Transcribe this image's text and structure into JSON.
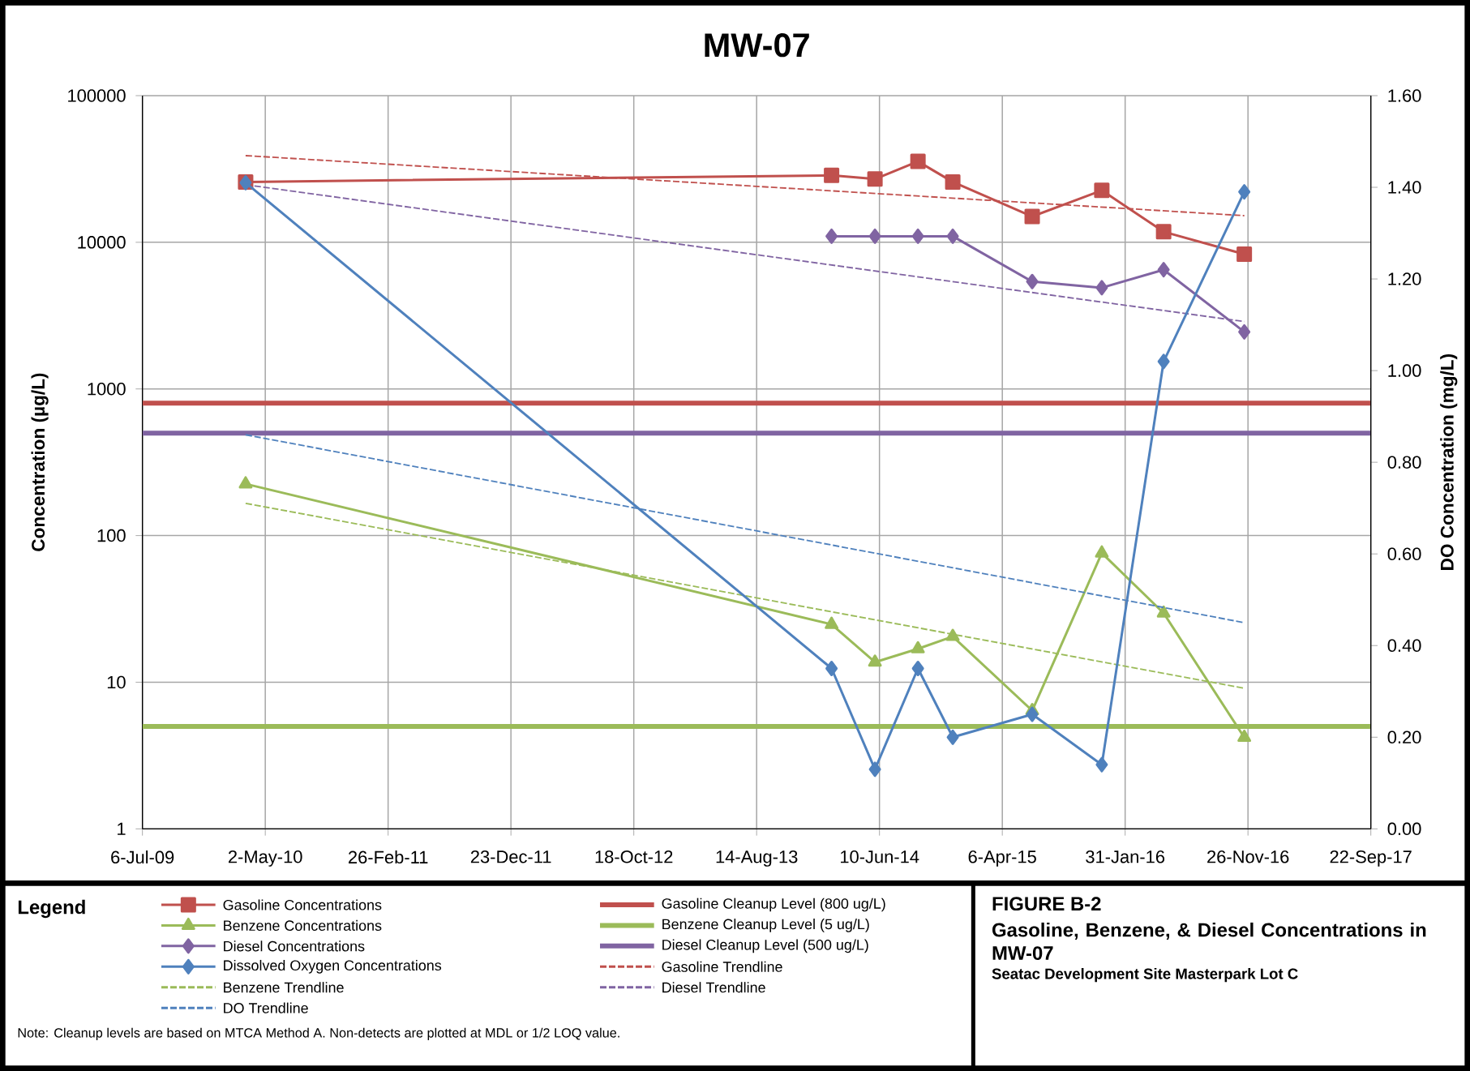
{
  "chart_data": {
    "type": "line",
    "title": "MW-07",
    "ylabel": "Concentration (µg/L)",
    "y2label": "DO Concentration (mg/L)",
    "legend_title": "Legend",
    "annotations": [
      "FIGURE B-2",
      "Gasoline, Benzene, & Diesel Concentrations in MW-07",
      "Seatac Development Site Masterpark Lot C",
      "Note:  Cleanup levels are based on MTCA Method A.  Non-detects are plotted at MDL or  1/2 LOQ value."
    ],
    "x": [
      "2010-03-15",
      "2014-02-13",
      "2014-05-30",
      "2014-09-12",
      "2014-12-06",
      "2015-06-18",
      "2015-12-05",
      "2016-05-04",
      "2016-11-17"
    ],
    "series": [
      {
        "name": "Gasoline Concentrations",
        "color": "#c0504d",
        "marker": "square",
        "line_style": "solid",
        "values": [
          25800,
          28600,
          27000,
          35600,
          25800,
          15000,
          22600,
          11800,
          8300
        ]
      },
      {
        "name": "Benzene Concentrations",
        "color": "#9bbb59",
        "marker": "triangle",
        "line_style": "solid",
        "values": [
          225,
          24.8,
          13.7,
          16.9,
          20.5,
          6.4,
          76,
          29.6,
          4.2
        ]
      },
      {
        "name": "Diesel Concentrations",
        "color": "#8064a2",
        "marker": "diamond",
        "line_style": "solid",
        "values": [
          null,
          11000,
          11000,
          11000,
          11000,
          5400,
          4900,
          6500,
          2450
        ]
      },
      {
        "name": "Dissolved Oxygen Concentrations",
        "color": "#4f81bd",
        "marker": "diamond",
        "line_style": "solid",
        "axis": "y2",
        "values": [
          1.41,
          0.35,
          0.13,
          0.35,
          0.2,
          0.25,
          0.14,
          1.02,
          1.39
        ]
      },
      {
        "name": "Benzene Trendline",
        "color": "#9bbb59",
        "marker": "none",
        "line_style": "dashed",
        "x": [
          "2010-03-15",
          "2016-11-17"
        ],
        "values": [
          166,
          9.1
        ]
      },
      {
        "name": "DO Trendline",
        "color": "#4f81bd",
        "marker": "none",
        "line_style": "dashed",
        "axis": "y2",
        "x": [
          "2010-03-15",
          "2016-11-17"
        ],
        "values": [
          0.86,
          0.45
        ]
      },
      {
        "name": "Gasoline Trendline",
        "color": "#c0504d",
        "marker": "none",
        "line_style": "dashed",
        "x": [
          "2010-03-15",
          "2016-11-17"
        ],
        "values": [
          39000,
          15200
        ]
      },
      {
        "name": "Diesel Trendline",
        "color": "#8064a2",
        "marker": "none",
        "line_style": "dashed",
        "x": [
          "2010-03-15",
          "2016-11-17"
        ],
        "values": [
          24700,
          2880
        ]
      }
    ],
    "ref_lines": [
      {
        "axis": "y",
        "value": 800,
        "label": "Gasoline Cleanup Level (800 ug/L)",
        "color": "#c0504d"
      },
      {
        "axis": "y",
        "value": 5,
        "label": "Benzene Cleanup Level (5 ug/L)",
        "color": "#9bbb59"
      },
      {
        "axis": "y",
        "value": 500,
        "label": "Diesel Cleanup Level (500 ug/L)",
        "color": "#8064a2"
      }
    ],
    "log": "y",
    "grid": true,
    "legend": "bottom",
    "xlim": [
      "2009-07-06",
      "2017-09-22"
    ],
    "xticks": [
      {
        "value": "2009-07-06",
        "label": "6-Jul-09"
      },
      {
        "value": "2010-05-02",
        "label": "2-May-10"
      },
      {
        "value": "2011-02-26",
        "label": "26-Feb-11"
      },
      {
        "value": "2011-12-23",
        "label": "23-Dec-11"
      },
      {
        "value": "2012-10-18",
        "label": "18-Oct-12"
      },
      {
        "value": "2013-08-14",
        "label": "14-Aug-13"
      },
      {
        "value": "2014-06-10",
        "label": "10-Jun-14"
      },
      {
        "value": "2015-04-06",
        "label": "6-Apr-15"
      },
      {
        "value": "2016-01-31",
        "label": "31-Jan-16"
      },
      {
        "value": "2016-11-26",
        "label": "26-Nov-16"
      },
      {
        "value": "2017-09-22",
        "label": "22-Sep-17"
      }
    ],
    "ylim": [
      1,
      100000
    ],
    "yticks": [
      1,
      10,
      100,
      1000,
      10000,
      100000
    ],
    "y2lim": [
      0,
      1.6
    ],
    "y2ticks": [
      {
        "value": 0,
        "label": "0.00"
      },
      {
        "value": 0.2,
        "label": "0.20"
      },
      {
        "value": 0.4,
        "label": "0.40"
      },
      {
        "value": 0.6,
        "label": "0.60"
      },
      {
        "value": 0.8,
        "label": "0.80"
      },
      {
        "value": 1.0,
        "label": "1.00"
      },
      {
        "value": 1.2,
        "label": "1.20"
      },
      {
        "value": 1.4,
        "label": "1.40"
      },
      {
        "value": 1.6,
        "label": "1.60"
      }
    ]
  }
}
